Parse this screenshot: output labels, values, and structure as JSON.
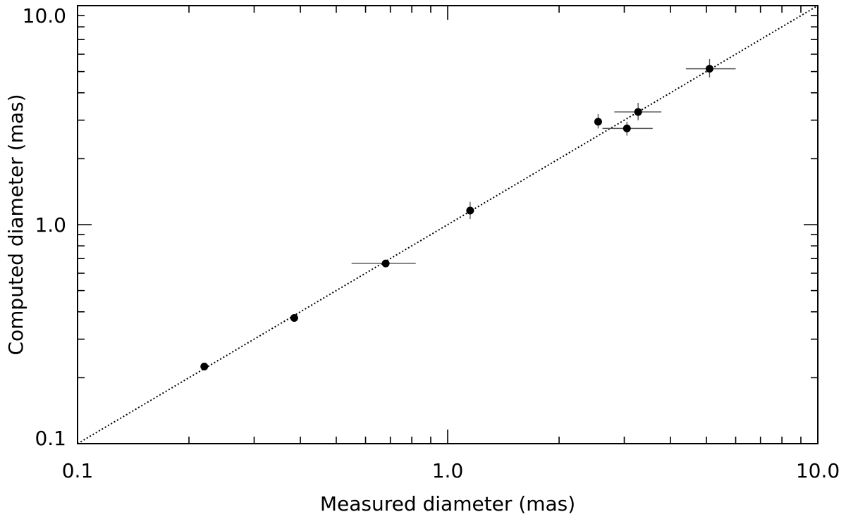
{
  "chart_data": {
    "type": "scatter",
    "title": "",
    "xlabel": "Measured diameter (mas)",
    "ylabel": "Computed diameter (mas)",
    "xscale": "log",
    "yscale": "log",
    "xlim": [
      0.1,
      10.0
    ],
    "ylim": [
      0.1,
      10.0
    ],
    "x_ticks": [
      "0.1",
      "1.0",
      "10.0"
    ],
    "y_ticks": [
      "0.1",
      "1.0",
      "10.0"
    ],
    "grid": false,
    "legend": "none",
    "reference_line": {
      "style": "dotted",
      "description": "y = x"
    },
    "points": [
      {
        "x": 0.22,
        "y": 0.225,
        "xerr": [
          0.22,
          0.22
        ],
        "yerr": [
          0.225,
          0.225
        ]
      },
      {
        "x": 0.385,
        "y": 0.375,
        "xerr": [
          0.385,
          0.385
        ],
        "yerr": [
          0.375,
          0.375
        ]
      },
      {
        "x": 0.68,
        "y": 0.665,
        "xerr": [
          0.55,
          0.82
        ],
        "yerr": [
          0.665,
          0.665
        ]
      },
      {
        "x": 1.15,
        "y": 1.16,
        "xerr": [
          1.15,
          1.15
        ],
        "yerr": [
          1.06,
          1.27
        ]
      },
      {
        "x": 2.55,
        "y": 2.95,
        "xerr": [
          2.55,
          2.55
        ],
        "yerr": [
          2.75,
          3.2
        ]
      },
      {
        "x": 3.05,
        "y": 2.75,
        "xerr": [
          2.62,
          3.58
        ],
        "yerr": [
          2.55,
          2.95
        ]
      },
      {
        "x": 3.27,
        "y": 3.27,
        "xerr": [
          2.82,
          3.78
        ],
        "yerr": [
          3.0,
          3.6
        ]
      },
      {
        "x": 5.1,
        "y": 5.15,
        "xerr": [
          4.4,
          6.0
        ],
        "yerr": [
          4.7,
          5.7
        ]
      }
    ]
  }
}
